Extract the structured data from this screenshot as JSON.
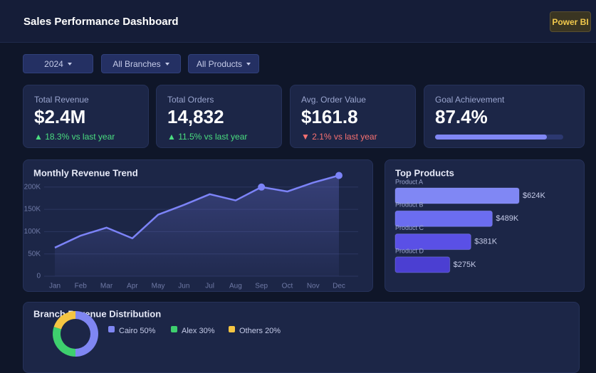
{
  "header": {
    "title": "Sales Performance Dashboard",
    "badge": "Power BI"
  },
  "filters": [
    "2024",
    "All Branches",
    "All Products"
  ],
  "kpis": [
    {
      "label": "Total Revenue",
      "value": "$2.4M",
      "delta": "▲ 18.3% vs last year",
      "delta_color": "#4ade80"
    },
    {
      "label": "Total Orders",
      "value": "14,832",
      "delta": "▲ 11.5% vs last year",
      "delta_color": "#4ade80"
    },
    {
      "label": "Avg. Order Value",
      "value": "$161.8",
      "delta": "▼ 2.1% vs last year",
      "delta_color": "#f87171"
    },
    {
      "label": "Goal Achievement",
      "value": "87.4%",
      "progress": 87.4
    }
  ],
  "chart_data": [
    {
      "type": "line",
      "title": "Monthly Revenue Trend",
      "categories": [
        "Jan",
        "Feb",
        "Mar",
        "Apr",
        "May",
        "Jun",
        "Jul",
        "Aug",
        "Sep",
        "Oct",
        "Nov",
        "Dec"
      ],
      "series": [
        {
          "color": "#7c83f7",
          "values": [
            64000,
            91000,
            109000,
            85000,
            138000,
            160000,
            184000,
            170000,
            200000,
            190000,
            210000,
            226000
          ]
        }
      ],
      "ylim": [
        0,
        230000
      ],
      "yticks": [
        0,
        {
          "value": 50000,
          "label": "50K"
        },
        {
          "value": 100000,
          "label": "100K"
        },
        {
          "value": 150000,
          "label": "150K"
        },
        {
          "value": 200000,
          "label": "200K"
        }
      ],
      "grid": true,
      "markers": [
        8,
        11
      ]
    },
    {
      "type": "bar",
      "orientation": "horizontal",
      "title": "Top Products",
      "categories": [
        "Product A",
        "Product B",
        "Product C",
        "Product D"
      ],
      "values": [
        624000,
        489000,
        381000,
        275000
      ],
      "value_labels": [
        "$624K",
        "$489K",
        "$381K",
        "$275K"
      ],
      "colors": [
        "#8087f4",
        "#6b6df0",
        "#5a50e6",
        "#4b3fd2"
      ]
    },
    {
      "type": "pie",
      "donut": true,
      "title": "Branch Revenue Distribution",
      "values": [
        50,
        30,
        20
      ],
      "legend": [
        "Cairo 50%",
        "Alex 30%",
        "Others 20%"
      ],
      "colors": [
        "#7f86f2",
        "#3ecf6e",
        "#f5c542"
      ]
    }
  ]
}
